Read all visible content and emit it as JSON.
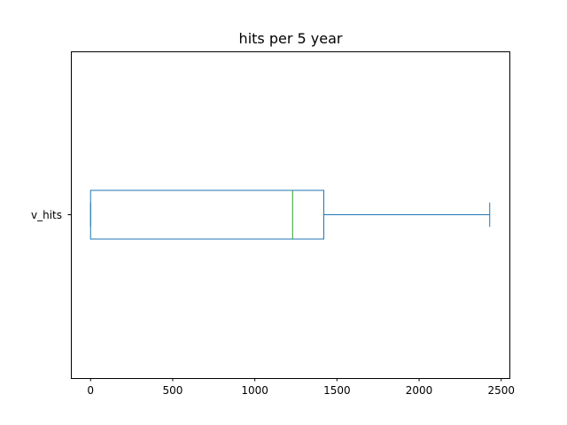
{
  "chart_data": {
    "type": "boxplot",
    "title": "hits per 5 year",
    "xlabel": "",
    "ylabel": "",
    "xlim": [
      -120,
      2550
    ],
    "xticks": [
      0,
      500,
      1000,
      1500,
      2000,
      2500
    ],
    "xtick_labels": [
      "0",
      "500",
      "1000",
      "1500",
      "2000",
      "2500"
    ],
    "orientation": "horizontal",
    "grid": false,
    "series": [
      {
        "name": "v_hits",
        "whisker_low": 0,
        "q1": 0,
        "median": 1230,
        "q3": 1420,
        "whisker_high": 2430
      }
    ],
    "colors": {
      "box": "#1f77b4",
      "whisker": "#1f77b4",
      "median": "#2ca02c",
      "frame": "#000000"
    }
  }
}
